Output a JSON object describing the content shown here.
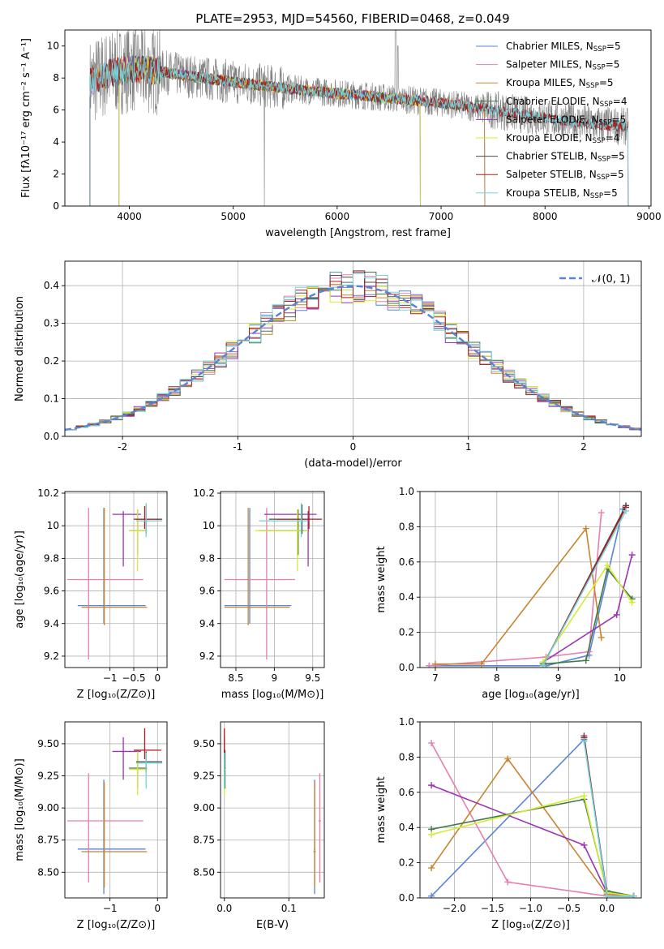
{
  "figure": {
    "title": "PLATE=2953, MJD=54560, FIBERID=0468, z=0.049"
  },
  "colors": {
    "Chabrier MILES": "#5b84d6",
    "Salpeter MILES": "#e57fb0",
    "Kroupa MILES": "#c6852f",
    "Chabrier ELODIE": "#3f7a42",
    "Salpeter ELODIE": "#9a33b5",
    "Kroupa ELODIE": "#d7ea33",
    "Chabrier STELIB": "#4a4a4a",
    "Salpeter STELIB": "#b31a1a",
    "Kroupa STELIB": "#74d6dd",
    "data": "#808080",
    "normal": "#5b84d6"
  },
  "chart_data": [
    {
      "id": "spectrum",
      "type": "line",
      "title": "PLATE=2953, MJD=54560, FIBERID=0468, z=0.049",
      "xlabel": "wavelength [Angstrom, rest frame]",
      "ylabel": "Flux [fλ10⁻¹⁷ erg cm⁻² s⁻¹ A⁻¹]",
      "xlim": [
        3380,
        9020
      ],
      "ylim": [
        0,
        11
      ],
      "xticks": [
        4000,
        5000,
        6000,
        7000,
        8000,
        9000
      ],
      "yticks": [
        0,
        2,
        4,
        6,
        8,
        10
      ],
      "grid": false,
      "legend_position": "top-right",
      "legend": [
        {
          "label": "Chabrier MILES, N",
          "sub": "SSP",
          "rest": "=5"
        },
        {
          "label": "Salpeter MILES, N",
          "sub": "SSP",
          "rest": "=5"
        },
        {
          "label": "Kroupa MILES, N",
          "sub": "SSP",
          "rest": "=5"
        },
        {
          "label": "Chabrier ELODIE, N",
          "sub": "SSP",
          "rest": "=4"
        },
        {
          "label": "Salpeter ELODIE, N",
          "sub": "SSP",
          "rest": "=5"
        },
        {
          "label": "Kroupa ELODIE, N",
          "sub": "SSP",
          "rest": "=4"
        },
        {
          "label": "Chabrier STELIB, N",
          "sub": "SSP",
          "rest": "=5"
        },
        {
          "label": "Salpeter STELIB, N",
          "sub": "SSP",
          "rest": "=5"
        },
        {
          "label": "Kroupa STELIB, N",
          "sub": "SSP",
          "rest": "=5"
        }
      ],
      "continuum": [
        [
          3620,
          7.7
        ],
        [
          3800,
          8.3
        ],
        [
          4000,
          8.6
        ],
        [
          4300,
          8.4
        ],
        [
          4600,
          8.1
        ],
        [
          5000,
          7.75
        ],
        [
          5500,
          7.35
        ],
        [
          6000,
          7.05
        ],
        [
          6500,
          6.75
        ],
        [
          7000,
          6.45
        ],
        [
          7500,
          6.0
        ],
        [
          8000,
          5.5
        ],
        [
          8500,
          5.1
        ],
        [
          8800,
          4.95
        ]
      ],
      "model_ranges": {
        "MILES": [
          3620,
          7420
        ],
        "ELODIE": [
          3900,
          6800
        ],
        "STELIB": [
          3620,
          8800
        ]
      }
    },
    {
      "id": "residuals",
      "type": "histogram",
      "xlabel": "(data-model)/error",
      "ylabel": "Normed distribution",
      "xlim": [
        -2.5,
        2.5
      ],
      "ylim": [
        0,
        0.465
      ],
      "xticks": [
        -2,
        -1,
        0,
        1,
        2
      ],
      "yticks": [
        0.0,
        0.1,
        0.2,
        0.3,
        0.4
      ],
      "grid": true,
      "legend_position": "top-right",
      "legend": [
        "𝒩(0, 1)"
      ],
      "bins": {
        "start": -2.5,
        "width": 0.1,
        "count": 50
      }
    },
    {
      "id": "age-Z",
      "type": "errorbar",
      "xlabel": "Z [log₁₀(Z/Z⊙)]",
      "ylabel": "age  [log₁₀(age/yr)]",
      "xlim": [
        -1.95,
        0.2
      ],
      "ylim": [
        9.13,
        10.21
      ],
      "xticks": [
        -1,
        -0.5,
        0
      ],
      "xticklabels": [
        "−1",
        "−0.5",
        "0"
      ],
      "yticks": [
        9.2,
        9.4,
        9.6,
        9.8,
        10.0,
        10.2
      ],
      "grid": true
    },
    {
      "id": "age-mass",
      "type": "errorbar",
      "xlabel": "mass [log₁₀(M/M⊙)]",
      "ylabel": "",
      "xlim": [
        8.3,
        9.65
      ],
      "ylim": [
        9.13,
        10.21
      ],
      "xticks": [
        8.5,
        9.0,
        9.5
      ],
      "yticks": [
        9.2,
        9.4,
        9.6,
        9.8,
        10.0,
        10.2
      ],
      "grid": true
    },
    {
      "id": "weight-age",
      "type": "line",
      "xlabel": "age  [log₁₀(age/yr)]",
      "ylabel": "mass weight",
      "xlim": [
        6.75,
        10.35
      ],
      "ylim": [
        0,
        1
      ],
      "xticks": [
        7,
        8,
        9,
        10
      ],
      "yticks": [
        0.0,
        0.2,
        0.4,
        0.6,
        0.8,
        1.0
      ],
      "grid": true
    },
    {
      "id": "mass-Z",
      "type": "errorbar",
      "xlabel": "Z [log₁₀(Z/Z⊙)]",
      "ylabel": "mass [log₁₀(M/M⊙)]",
      "xlim": [
        -1.95,
        0.2
      ],
      "ylim": [
        8.3,
        9.67
      ],
      "xticks": [
        -1,
        0
      ],
      "xticklabels": [
        "−1",
        "0"
      ],
      "yticks": [
        8.5,
        8.75,
        9.0,
        9.25,
        9.5
      ],
      "yticklabels": [
        "8.50",
        "8.75",
        "9.00",
        "9.25",
        "9.50"
      ],
      "grid": true
    },
    {
      "id": "mass-EBV",
      "type": "errorbar",
      "xlabel": "E(B-V)",
      "ylabel": "",
      "xlim": [
        -0.006,
        0.155
      ],
      "ylim": [
        8.3,
        9.67
      ],
      "xticks": [
        0.0,
        0.1
      ],
      "xticklabels": [
        "0.0",
        "0.1"
      ],
      "yticks": [
        8.5,
        8.75,
        9.0,
        9.25,
        9.5
      ],
      "yticklabels": [
        "8.50",
        "8.75",
        "9.00",
        "9.25",
        "9.50"
      ],
      "grid": true
    },
    {
      "id": "weight-Z",
      "type": "line",
      "xlabel": "Z [log₁₀(Z/Z⊙)]",
      "ylabel": "mass weight",
      "xlim": [
        -2.45,
        0.45
      ],
      "ylim": [
        0,
        1
      ],
      "xticks": [
        -2.0,
        -1.5,
        -1.0,
        -0.5,
        0.0
      ],
      "xticklabels": [
        "−2.0",
        "−1.5",
        "−1.0",
        "−0.5",
        "0.0"
      ],
      "yticks": [
        0.0,
        0.2,
        0.4,
        0.6,
        0.8,
        1.0
      ],
      "grid": true
    }
  ],
  "fits": [
    {
      "name": "Chabrier MILES",
      "Z": [
        -1.13,
        -1.68,
        -0.25
      ],
      "age": [
        9.51,
        9.4,
        10.11
      ],
      "mass": [
        8.68,
        8.33,
        9.22
      ],
      "ebv": [
        0.14,
        0.139,
        0.141
      ],
      "weights_age": [
        [
          6.9,
          0.01
        ],
        [
          8.8,
          0.01
        ],
        [
          9.5,
          0.07
        ],
        [
          10.05,
          0.9
        ]
      ],
      "weights_Z": [
        [
          -2.3,
          0.01
        ],
        [
          -0.3,
          0.9
        ],
        [
          0.0,
          0.03
        ],
        [
          0.35,
          0.01
        ]
      ]
    },
    {
      "name": "Salpeter MILES",
      "Z": [
        -1.45,
        -1.9,
        -0.3
      ],
      "age": [
        9.67,
        9.18,
        10.11
      ],
      "mass": [
        8.9,
        8.42,
        9.27
      ],
      "ebv": [
        0.148,
        0.146,
        0.15
      ],
      "weights_age": [
        [
          6.9,
          0.01
        ],
        [
          8.8,
          0.06
        ],
        [
          9.5,
          0.09
        ],
        [
          9.7,
          0.88
        ]
      ],
      "weights_Z": [
        [
          -2.3,
          0.88
        ],
        [
          -1.3,
          0.09
        ],
        [
          0.0,
          0.01
        ],
        [
          0.35,
          0.01
        ]
      ]
    },
    {
      "name": "Kroupa MILES",
      "Z": [
        -1.12,
        -1.6,
        -0.22
      ],
      "age": [
        9.5,
        9.39,
        10.11
      ],
      "mass": [
        8.66,
        8.38,
        9.2
      ],
      "ebv": [
        0.14,
        0.138,
        0.142
      ],
      "weights_age": [
        [
          7.0,
          0.02
        ],
        [
          7.75,
          0.02
        ],
        [
          9.45,
          0.79
        ],
        [
          9.7,
          0.17
        ]
      ],
      "weights_Z": [
        [
          -2.3,
          0.17
        ],
        [
          -1.3,
          0.79
        ],
        [
          0.0,
          0.02
        ],
        [
          0.35,
          0.01
        ]
      ]
    },
    {
      "name": "Chabrier ELODIE",
      "Z": [
        -0.42,
        -0.6,
        -0.22
      ],
      "age": [
        9.97,
        9.82,
        10.1
      ],
      "mass": [
        9.31,
        9.15,
        9.45
      ],
      "ebv": [
        0.001,
        -0.001,
        0.002
      ],
      "weights_age": [
        [
          8.75,
          0.02
        ],
        [
          9.45,
          0.04
        ],
        [
          9.8,
          0.56
        ],
        [
          10.2,
          0.39
        ]
      ],
      "weights_Z": [
        [
          -2.3,
          0.39
        ],
        [
          -0.3,
          0.56
        ],
        [
          0.0,
          0.04
        ],
        [
          0.35,
          0.01
        ]
      ]
    },
    {
      "name": "Salpeter ELODIE",
      "Z": [
        -0.72,
        -0.95,
        -0.35
      ],
      "age": [
        10.07,
        9.75,
        10.09
      ],
      "mass": [
        9.44,
        9.22,
        9.55
      ],
      "ebv": [
        0.0,
        -0.001,
        0.001
      ],
      "weights_age": [
        [
          8.75,
          0.03
        ],
        [
          9.95,
          0.3
        ],
        [
          10.2,
          0.64
        ]
      ],
      "weights_Z": [
        [
          -2.3,
          0.64
        ],
        [
          -0.3,
          0.3
        ],
        [
          0.0,
          0.03
        ],
        [
          0.35,
          0.01
        ]
      ]
    },
    {
      "name": "Kroupa ELODIE",
      "Z": [
        -0.42,
        -0.6,
        -0.22
      ],
      "age": [
        9.97,
        9.72,
        10.1
      ],
      "mass": [
        9.3,
        9.1,
        9.44
      ],
      "ebv": [
        0.0,
        -0.001,
        0.002
      ],
      "weights_age": [
        [
          8.75,
          0.03
        ],
        [
          9.8,
          0.58
        ],
        [
          10.2,
          0.37
        ]
      ],
      "weights_Z": [
        [
          -2.3,
          0.36
        ],
        [
          -0.3,
          0.58
        ],
        [
          0.0,
          0.03
        ],
        [
          0.35,
          0.01
        ]
      ]
    },
    {
      "name": "Chabrier STELIB",
      "Z": [
        -0.24,
        -0.45,
        0.1
      ],
      "age": [
        10.04,
        9.95,
        10.13
      ],
      "mass": [
        9.36,
        9.28,
        9.44
      ],
      "ebv": [
        0.0,
        -0.001,
        0.001
      ],
      "weights_age": [
        [
          8.75,
          0.01
        ],
        [
          10.1,
          0.92
        ]
      ],
      "weights_Z": [
        [
          -0.3,
          0.92
        ],
        [
          0.0,
          0.01
        ],
        [
          0.35,
          0.01
        ]
      ]
    },
    {
      "name": "Salpeter STELIB",
      "Z": [
        -0.27,
        -0.5,
        0.08
      ],
      "age": [
        10.04,
        9.98,
        10.12
      ],
      "mass": [
        9.45,
        9.38,
        9.62
      ],
      "ebv": [
        0.0,
        -0.001,
        0.001
      ],
      "weights_age": [
        [
          8.75,
          0.01
        ],
        [
          10.1,
          0.91
        ]
      ],
      "weights_Z": [
        [
          -0.3,
          0.91
        ],
        [
          0.0,
          0.01
        ],
        [
          0.35,
          0.01
        ]
      ]
    },
    {
      "name": "Kroupa STELIB",
      "Z": [
        -0.24,
        -0.45,
        0.1
      ],
      "age": [
        10.03,
        9.93,
        10.14
      ],
      "mass": [
        9.35,
        9.15,
        9.43
      ],
      "ebv": [
        0.0,
        -0.001,
        0.001
      ],
      "weights_age": [
        [
          8.75,
          0.01
        ],
        [
          10.1,
          0.89
        ]
      ],
      "weights_Z": [
        [
          -0.3,
          0.89
        ],
        [
          0.0,
          0.01
        ],
        [
          0.35,
          0.01
        ]
      ]
    }
  ]
}
